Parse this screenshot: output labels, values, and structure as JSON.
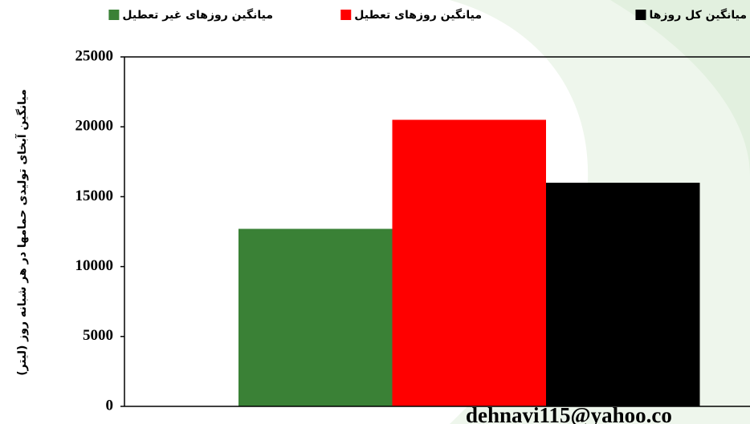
{
  "chart_data": {
    "type": "bar",
    "y_label": "میانگین آبخای تولیدی حمامها در هر شبانه روز  (لیتر)",
    "categories": [
      null
    ],
    "series": [
      {
        "name": "میانگین روزهای غیر تعطیل",
        "color": "#3a8136",
        "values": [
          12700
        ]
      },
      {
        "name": "میانگین روزهای تعطیل",
        "color": "#ff0000",
        "values": [
          20500
        ]
      },
      {
        "name": "میانگین کل روزها",
        "color": "#000000",
        "values": [
          16000
        ]
      }
    ],
    "ylim": [
      0,
      25000
    ],
    "yticks": [
      0,
      5000,
      10000,
      15000,
      20000,
      25000
    ],
    "watermark": "dehnavi115@yahoo.co"
  }
}
